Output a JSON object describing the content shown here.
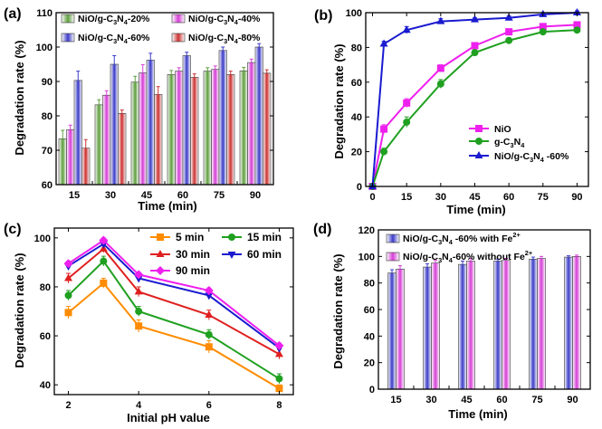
{
  "chart_data": [
    {
      "panel": "(a)",
      "type": "bar",
      "xlabel": "Time (min)",
      "ylabel": "Degradation rate (%)",
      "categories": [
        "15",
        "30",
        "45",
        "60",
        "75",
        "90"
      ],
      "ylim": [
        60,
        110
      ],
      "yticks": [
        "60",
        "70",
        "80",
        "90",
        "100",
        "110"
      ],
      "legend_position": "top",
      "series": [
        {
          "name_parts": [
            "NiO/g-C",
            "3",
            "N",
            "4",
            "-20%"
          ],
          "color": "#5f9f3f",
          "values": [
            73.3,
            83.2,
            89.8,
            92.0,
            93.0,
            93.1
          ],
          "errors": [
            2.5,
            1.5,
            1.7,
            1.2,
            1.0,
            1.0
          ]
        },
        {
          "name_parts": [
            "NiO/g-C",
            "3",
            "N",
            "4",
            "-40%"
          ],
          "color": "#d63fd6",
          "values": [
            76.0,
            86.0,
            92.5,
            93.0,
            93.5,
            95.5
          ],
          "errors": [
            1.3,
            1.3,
            2.4,
            1.0,
            1.0,
            1.0
          ]
        },
        {
          "name_parts": [
            "NiO/g-C",
            "3",
            "N",
            "4",
            "-60%"
          ],
          "color": "#3c3cc8",
          "values": [
            90.3,
            95.0,
            96.2,
            97.5,
            99.0,
            100.0
          ],
          "errors": [
            2.7,
            2.5,
            2.0,
            1.0,
            1.0,
            1.0
          ]
        },
        {
          "name_parts": [
            "NiO/g-C",
            "3",
            "N",
            "4",
            "-80%"
          ],
          "color": "#cc3333",
          "values": [
            70.6,
            80.7,
            86.2,
            91.2,
            92.0,
            92.4
          ],
          "errors": [
            2.5,
            1.0,
            2.3,
            1.0,
            1.0,
            1.0
          ]
        }
      ]
    },
    {
      "panel": "(b)",
      "type": "line",
      "xlabel": "Time (min)",
      "ylabel": "Degradation rate (%)",
      "x": [
        0,
        5,
        15,
        30,
        45,
        60,
        75,
        90
      ],
      "xlim": [
        -3,
        95
      ],
      "ylim": [
        0,
        100
      ],
      "xticks": [
        "0",
        "15",
        "30",
        "45",
        "60",
        "75",
        "90"
      ],
      "yticks": [
        "0",
        "20",
        "40",
        "60",
        "80",
        "100"
      ],
      "legend_position": "lower-right",
      "series": [
        {
          "name_parts": [
            "NiO"
          ],
          "color": "#ee20ee",
          "marker": "square",
          "values": [
            0,
            33,
            48,
            68,
            81,
            89,
            92,
            93
          ],
          "errors": [
            0,
            2.5,
            2.5,
            2,
            1.5,
            1,
            1,
            1
          ]
        },
        {
          "name_parts": [
            "g-C",
            "3",
            "N",
            "4"
          ],
          "color": "#20a020",
          "marker": "circle",
          "values": [
            0,
            20,
            37,
            59,
            77,
            84,
            89,
            90
          ],
          "errors": [
            0,
            2,
            3,
            2.5,
            1.5,
            1,
            1,
            1
          ]
        },
        {
          "name_parts": [
            "NiO/g-C",
            "3",
            "N",
            "4",
            " -60%"
          ],
          "color": "#1a1ad0",
          "marker": "triangle",
          "values": [
            0,
            82,
            90,
            95,
            96,
            97,
            99,
            100
          ],
          "errors": [
            0,
            1.5,
            2,
            1.5,
            1,
            1,
            1,
            1
          ]
        }
      ]
    },
    {
      "panel": "(c)",
      "type": "line",
      "xlabel": "Initial pH value",
      "ylabel": "Degradation rate (%)",
      "x": [
        2,
        3,
        4,
        6,
        8
      ],
      "xlim": [
        1.6,
        8.4
      ],
      "ylim": [
        36,
        104
      ],
      "xticks": [
        "2",
        "4",
        "6",
        "8"
      ],
      "yticks": [
        "40",
        "60",
        "80",
        "100"
      ],
      "legend_position": "top-right",
      "series": [
        {
          "name_parts": [
            "5 min"
          ],
          "color": "#ff8c00",
          "marker": "square",
          "values": [
            69.5,
            81.5,
            64,
            55.5,
            38.5
          ],
          "errors": [
            2.5,
            2,
            2.5,
            2.5,
            1.5
          ]
        },
        {
          "name_parts": [
            "15 min"
          ],
          "color": "#20a020",
          "marker": "circle",
          "values": [
            76.5,
            90.5,
            70,
            60.5,
            42.5
          ],
          "errors": [
            2,
            2,
            2,
            2,
            2
          ]
        },
        {
          "name_parts": [
            "30 min"
          ],
          "color": "#e02020",
          "marker": "triangle",
          "values": [
            83.5,
            95.5,
            78,
            68.5,
            52.5
          ],
          "errors": [
            2,
            1.5,
            2,
            2,
            2
          ]
        },
        {
          "name_parts": [
            "60 min"
          ],
          "color": "#1a1ad0",
          "marker": "triangle-down",
          "values": [
            88.5,
            97.5,
            83.5,
            76.5,
            55
          ],
          "errors": [
            1,
            1,
            1,
            1,
            1
          ]
        },
        {
          "name_parts": [
            "90 min"
          ],
          "color": "#ee20ee",
          "marker": "diamond",
          "values": [
            89.5,
            99,
            85,
            78.5,
            56
          ],
          "errors": [
            1,
            1,
            1,
            1,
            1
          ]
        }
      ]
    },
    {
      "panel": "(d)",
      "type": "bar",
      "xlabel": "Time (min)",
      "ylabel": "Degradation rate (%)",
      "categories": [
        "15",
        "30",
        "45",
        "60",
        "75",
        "90"
      ],
      "ylim": [
        0,
        120
      ],
      "yticks": [
        "0",
        "20",
        "40",
        "60",
        "80",
        "100",
        "120"
      ],
      "legend_position": "top",
      "series": [
        {
          "name_parts": [
            "NiO/g-C",
            "3",
            "N",
            "4",
            " -60% with Fe",
            "2+"
          ],
          "color": "#3c3cc8",
          "values": [
            87.5,
            92,
            94,
            96.5,
            98,
            99.5
          ],
          "errors": [
            2.5,
            2.5,
            2.5,
            1.5,
            1.5,
            1
          ]
        },
        {
          "name_parts": [
            "NiO/g-C",
            "3",
            "N",
            "4",
            "-60% without Fe",
            "2+"
          ],
          "color": "#d63fd6",
          "values": [
            90.5,
            95,
            96.5,
            97,
            98.5,
            100
          ],
          "errors": [
            2.5,
            2,
            2,
            1.5,
            1.5,
            1
          ]
        }
      ]
    }
  ]
}
